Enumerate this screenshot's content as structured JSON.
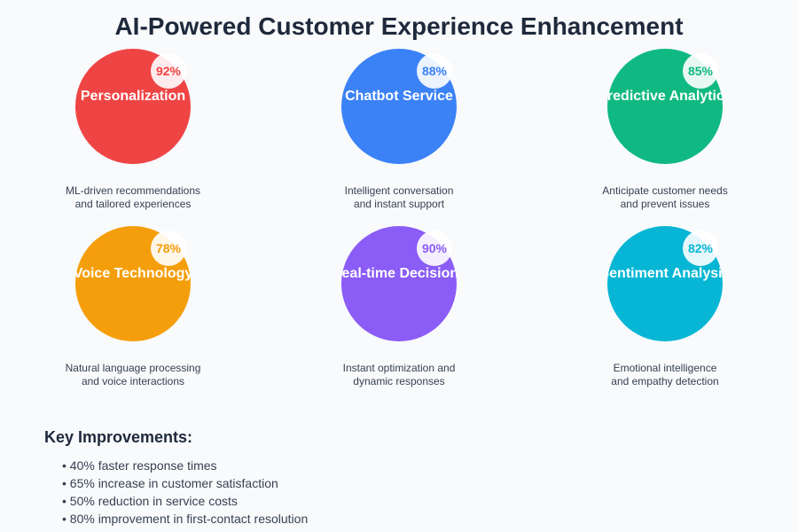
{
  "title": "AI-Powered Customer Experience Enhancement",
  "features": [
    {
      "name": "Personalization",
      "percent": "92%",
      "color": "#ef4444",
      "desc": [
        "ML-driven recommendations",
        "and tailored experiences"
      ]
    },
    {
      "name": "Chatbot Service",
      "percent": "88%",
      "color": "#3b82f6",
      "desc": [
        "Intelligent conversation",
        "and instant support"
      ]
    },
    {
      "name": "Predictive Analytics",
      "percent": "85%",
      "color": "#10b981",
      "desc": [
        "Anticipate customer needs",
        "and prevent issues"
      ]
    },
    {
      "name": "Voice Technology",
      "percent": "78%",
      "color": "#f59e0b",
      "desc": [
        "Natural language processing",
        "and voice interactions"
      ]
    },
    {
      "name": "Real-time Decisions",
      "percent": "90%",
      "color": "#8b5cf6",
      "desc": [
        "Instant optimization and",
        "dynamic responses"
      ]
    },
    {
      "name": "Sentiment Analysis",
      "percent": "82%",
      "color": "#06b6d4",
      "desc": [
        "Emotional intelligence",
        "and empathy detection"
      ]
    }
  ],
  "improvements": {
    "title": "Key Improvements:",
    "items": [
      "• 40% faster response times",
      "• 65% increase in customer satisfaction",
      "• 50% reduction in service costs",
      "• 80% improvement in first-contact resolution"
    ]
  }
}
